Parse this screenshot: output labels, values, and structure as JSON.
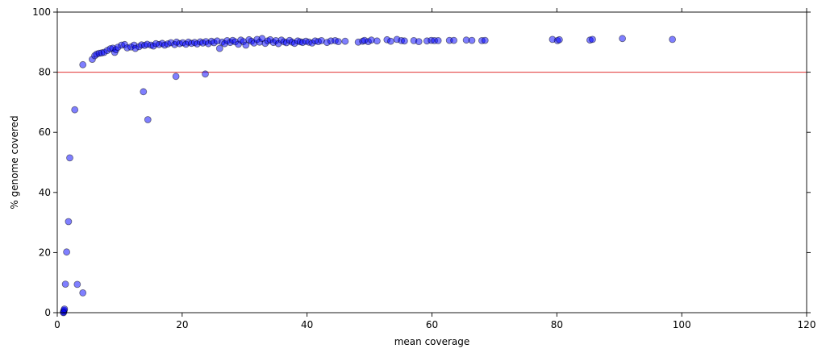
{
  "chart_data": {
    "type": "scatter",
    "title": "",
    "xlabel": "mean coverage",
    "ylabel": "% genome covered",
    "xlim": [
      0,
      120
    ],
    "ylim": [
      0,
      100
    ],
    "x_ticks": [
      0,
      20,
      40,
      60,
      80,
      100,
      120
    ],
    "y_ticks": [
      0,
      20,
      40,
      60,
      80,
      100
    ],
    "x_tick_labels": [
      "0",
      "20",
      "40",
      "60",
      "80",
      "100",
      "120"
    ],
    "y_tick_labels": [
      "0",
      "20",
      "40",
      "60",
      "80",
      "100"
    ],
    "grid": false,
    "reference_line": {
      "y": 80,
      "color": "#e03030"
    },
    "marker_color": "#0000ff",
    "marker_alpha": 0.5,
    "series": [
      {
        "points": [
          [
            1.0,
            0.2
          ],
          [
            1.05,
            0.5
          ],
          [
            1.1,
            0.8
          ],
          [
            1.15,
            1.2
          ],
          [
            1.0,
            0.0
          ],
          [
            1.3,
            9.5
          ],
          [
            1.5,
            20.2
          ],
          [
            1.8,
            30.3
          ],
          [
            2.0,
            51.5
          ],
          [
            2.8,
            67.5
          ],
          [
            3.2,
            9.4
          ],
          [
            4.1,
            6.6
          ],
          [
            4.1,
            82.5
          ],
          [
            5.6,
            84.3
          ],
          [
            6.0,
            85.5
          ],
          [
            6.3,
            86.0
          ],
          [
            6.7,
            86.3
          ],
          [
            7.1,
            86.4
          ],
          [
            7.5,
            86.6
          ],
          [
            8.0,
            87.2
          ],
          [
            8.5,
            87.8
          ],
          [
            8.9,
            88.0
          ],
          [
            9.2,
            86.6
          ],
          [
            9.4,
            87.5
          ],
          [
            9.7,
            88.3
          ],
          [
            10.3,
            89.0
          ],
          [
            10.8,
            89.2
          ],
          [
            11.2,
            88.1
          ],
          [
            11.8,
            88.4
          ],
          [
            12.3,
            89.0
          ],
          [
            12.5,
            87.9
          ],
          [
            13.1,
            88.5
          ],
          [
            13.5,
            89.1
          ],
          [
            14.0,
            88.9
          ],
          [
            14.4,
            89.3
          ],
          [
            13.8,
            73.5
          ],
          [
            14.5,
            64.2
          ],
          [
            15.0,
            89.0
          ],
          [
            15.4,
            88.7
          ],
          [
            15.8,
            89.5
          ],
          [
            16.3,
            89.2
          ],
          [
            16.8,
            89.6
          ],
          [
            17.2,
            89.0
          ],
          [
            17.7,
            89.4
          ],
          [
            18.2,
            89.8
          ],
          [
            18.8,
            89.2
          ],
          [
            19.1,
            90.0
          ],
          [
            19.0,
            78.6
          ],
          [
            23.7,
            79.4
          ],
          [
            19.6,
            89.5
          ],
          [
            20.1,
            89.8
          ],
          [
            20.6,
            89.3
          ],
          [
            21.0,
            90.0
          ],
          [
            21.5,
            89.6
          ],
          [
            22.0,
            89.9
          ],
          [
            22.4,
            89.4
          ],
          [
            22.9,
            90.1
          ],
          [
            23.3,
            89.7
          ],
          [
            23.8,
            90.2
          ],
          [
            24.2,
            89.5
          ],
          [
            24.7,
            90.3
          ],
          [
            25.1,
            89.8
          ],
          [
            25.6,
            90.4
          ],
          [
            26.0,
            87.9
          ],
          [
            26.4,
            90.0
          ],
          [
            26.8,
            89.5
          ],
          [
            27.2,
            90.5
          ],
          [
            27.7,
            89.9
          ],
          [
            28.1,
            90.6
          ],
          [
            28.5,
            90.1
          ],
          [
            29.0,
            89.3
          ],
          [
            29.4,
            90.7
          ],
          [
            29.8,
            90.2
          ],
          [
            30.2,
            89.0
          ],
          [
            30.7,
            90.8
          ],
          [
            31.1,
            90.3
          ],
          [
            31.5,
            89.7
          ],
          [
            32.0,
            90.9
          ],
          [
            32.4,
            90.0
          ],
          [
            32.8,
            91.2
          ],
          [
            33.3,
            89.6
          ],
          [
            33.7,
            90.4
          ],
          [
            34.1,
            90.8
          ],
          [
            34.6,
            89.9
          ],
          [
            35.0,
            90.5
          ],
          [
            35.4,
            89.5
          ],
          [
            35.9,
            90.7
          ],
          [
            36.3,
            90.1
          ],
          [
            36.7,
            89.8
          ],
          [
            37.2,
            90.6
          ],
          [
            37.6,
            90.0
          ],
          [
            38.0,
            89.6
          ],
          [
            38.5,
            90.4
          ],
          [
            38.9,
            90.1
          ],
          [
            39.3,
            89.9
          ],
          [
            39.8,
            90.3
          ],
          [
            40.3,
            90.0
          ],
          [
            40.8,
            89.7
          ],
          [
            41.3,
            90.4
          ],
          [
            41.8,
            90.2
          ],
          [
            42.3,
            90.5
          ],
          [
            43.2,
            89.9
          ],
          [
            43.8,
            90.4
          ],
          [
            44.5,
            90.5
          ],
          [
            45.0,
            90.2
          ],
          [
            46.1,
            90.3
          ],
          [
            48.2,
            90.0
          ],
          [
            48.9,
            90.3
          ],
          [
            49.2,
            90.6
          ],
          [
            49.8,
            90.2
          ],
          [
            50.3,
            90.7
          ],
          [
            51.2,
            90.4
          ],
          [
            52.8,
            90.8
          ],
          [
            53.4,
            90.3
          ],
          [
            54.4,
            90.9
          ],
          [
            55.1,
            90.5
          ],
          [
            55.6,
            90.4
          ],
          [
            57.1,
            90.5
          ],
          [
            57.9,
            90.2
          ],
          [
            59.2,
            90.4
          ],
          [
            59.9,
            90.6
          ],
          [
            60.4,
            90.5
          ],
          [
            61.0,
            90.5
          ],
          [
            62.8,
            90.6
          ],
          [
            63.5,
            90.6
          ],
          [
            65.5,
            90.7
          ],
          [
            66.4,
            90.6
          ],
          [
            68.0,
            90.5
          ],
          [
            68.5,
            90.6
          ],
          [
            79.3,
            90.9
          ],
          [
            80.1,
            90.5
          ],
          [
            80.4,
            90.8
          ],
          [
            85.3,
            90.7
          ],
          [
            85.7,
            90.9
          ],
          [
            90.5,
            91.2
          ],
          [
            98.5,
            90.9
          ]
        ]
      }
    ]
  }
}
